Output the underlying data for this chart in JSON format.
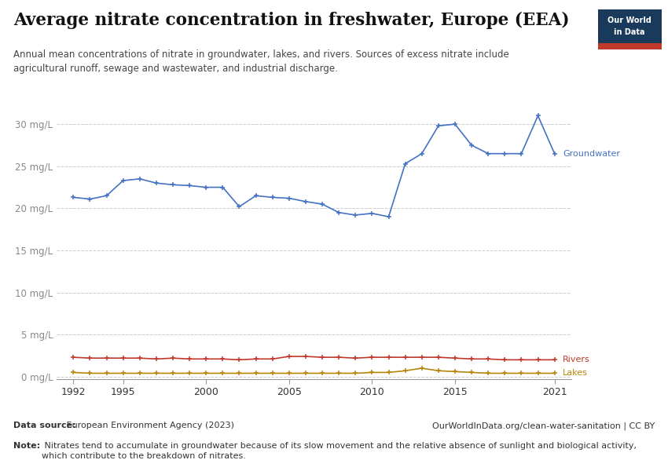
{
  "title": "Average nitrate concentration in freshwater, Europe (EEA)",
  "subtitle": "Annual mean concentrations of nitrate in groundwater, lakes, and rivers. Sources of excess nitrate include\nagricultural runoff, sewage and wastewater, and industrial discharge.",
  "groundwater_years": [
    1992,
    1993,
    1994,
    1995,
    1996,
    1997,
    1998,
    1999,
    2000,
    2001,
    2002,
    2003,
    2004,
    2005,
    2006,
    2007,
    2008,
    2009,
    2010,
    2011,
    2012,
    2013,
    2014,
    2015,
    2016,
    2017,
    2018,
    2019,
    2020,
    2021
  ],
  "groundwater_values": [
    21.3,
    21.1,
    21.5,
    23.3,
    23.5,
    23.0,
    22.8,
    22.7,
    22.5,
    22.5,
    20.2,
    21.5,
    21.3,
    21.2,
    20.8,
    20.5,
    19.5,
    19.2,
    19.4,
    19.0,
    25.3,
    26.5,
    29.8,
    30.0,
    27.5,
    26.5,
    26.5,
    26.5,
    31.0,
    26.5
  ],
  "rivers_years": [
    1992,
    1993,
    1994,
    1995,
    1996,
    1997,
    1998,
    1999,
    2000,
    2001,
    2002,
    2003,
    2004,
    2005,
    2006,
    2007,
    2008,
    2009,
    2010,
    2011,
    2012,
    2013,
    2014,
    2015,
    2016,
    2017,
    2018,
    2019,
    2020,
    2021
  ],
  "rivers_values": [
    2.3,
    2.2,
    2.2,
    2.2,
    2.2,
    2.1,
    2.2,
    2.1,
    2.1,
    2.1,
    2.0,
    2.1,
    2.1,
    2.4,
    2.4,
    2.3,
    2.3,
    2.2,
    2.3,
    2.3,
    2.3,
    2.3,
    2.3,
    2.2,
    2.1,
    2.1,
    2.0,
    2.0,
    2.0,
    2.0
  ],
  "lakes_years": [
    1992,
    1993,
    1994,
    1995,
    1996,
    1997,
    1998,
    1999,
    2000,
    2001,
    2002,
    2003,
    2004,
    2005,
    2006,
    2007,
    2008,
    2009,
    2010,
    2011,
    2012,
    2013,
    2014,
    2015,
    2016,
    2017,
    2018,
    2019,
    2020,
    2021
  ],
  "lakes_values": [
    0.5,
    0.4,
    0.4,
    0.4,
    0.4,
    0.4,
    0.4,
    0.4,
    0.4,
    0.4,
    0.4,
    0.4,
    0.4,
    0.4,
    0.4,
    0.4,
    0.4,
    0.4,
    0.5,
    0.5,
    0.7,
    1.0,
    0.7,
    0.6,
    0.5,
    0.4,
    0.4,
    0.4,
    0.4,
    0.4
  ],
  "groundwater_color": "#4472c4",
  "rivers_color": "#c0392b",
  "lakes_color": "#b8860b",
  "ylim": [
    -0.3,
    33
  ],
  "yticks": [
    0,
    5,
    10,
    15,
    20,
    25,
    30
  ],
  "ytick_labels": [
    "0 mg/L",
    "5 mg/L",
    "10 mg/L",
    "15 mg/L",
    "20 mg/L",
    "25 mg/L",
    "30 mg/L"
  ],
  "xlim": [
    1991.0,
    2022.0
  ],
  "xticks": [
    1992,
    1995,
    2000,
    2005,
    2010,
    2015,
    2021
  ],
  "data_source_bold": "Data source:",
  "data_source_rest": " European Environment Agency (2023)",
  "url": "OurWorldInData.org/clean-water-sanitation | CC BY",
  "note_bold": "Note:",
  "note_rest": " Nitrates tend to accumulate in groundwater because of its slow movement and the relative absence of sunlight and biological activity,\nwhich contribute to the breakdown of nitrates.",
  "logo_bg": "#1a3a5c",
  "logo_red": "#c0392b",
  "bg_color": "#ffffff"
}
